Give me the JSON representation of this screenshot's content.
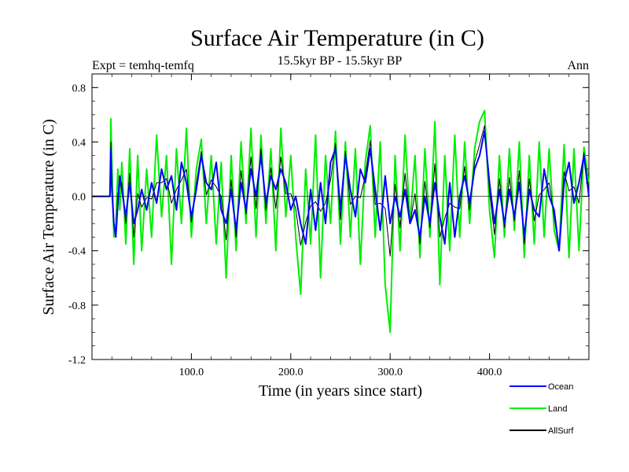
{
  "chart_data": {
    "type": "line",
    "title": "Surface Air Temperature (in C)",
    "subtitle": "15.5kyr BP - 15.5kyr BP",
    "left_label": "Expt = temhq-temfq",
    "right_label": "Ann",
    "xlabel": "Time (in years since start)",
    "ylabel": "Surface Air Temperature (in C)",
    "xlim": [
      0,
      500
    ],
    "ylim": [
      -1.2,
      0.9
    ],
    "xticks": [
      100,
      200,
      300,
      400
    ],
    "xtick_labels": [
      "100.0",
      "200.0",
      "300.0",
      "400.0"
    ],
    "yticks": [
      0.8,
      0.4,
      0.0,
      -0.4,
      -0.8,
      -1.2
    ],
    "ytick_labels": [
      "0.8",
      "0.4",
      "0.0",
      "-0.4",
      "-0.8",
      "-1.2"
    ],
    "legend_position": "bottom-right",
    "series": [
      {
        "name": "Ocean",
        "color": "#0000ff",
        "x": [
          0,
          18,
          19,
          20,
          22,
          24,
          26,
          28,
          30,
          34,
          38,
          42,
          46,
          50,
          55,
          60,
          65,
          70,
          75,
          80,
          85,
          90,
          95,
          100,
          105,
          110,
          115,
          120,
          125,
          130,
          135,
          140,
          145,
          150,
          155,
          160,
          165,
          170,
          175,
          180,
          185,
          190,
          195,
          200,
          205,
          210,
          215,
          220,
          225,
          230,
          235,
          240,
          245,
          250,
          255,
          260,
          265,
          270,
          275,
          280,
          285,
          290,
          295,
          300,
          305,
          310,
          315,
          320,
          325,
          330,
          335,
          340,
          345,
          350,
          355,
          360,
          365,
          370,
          375,
          380,
          385,
          390,
          395,
          400,
          405,
          410,
          415,
          420,
          425,
          430,
          435,
          440,
          445,
          450,
          455,
          460,
          465,
          470,
          475,
          480,
          485,
          490,
          495,
          500
        ],
        "y": [
          0.0,
          0.0,
          0.34,
          0.05,
          -0.2,
          -0.3,
          -0.05,
          0.15,
          0.05,
          -0.15,
          0.1,
          -0.2,
          -0.1,
          0.05,
          -0.1,
          0.1,
          -0.05,
          0.2,
          0.05,
          0.15,
          -0.1,
          0.25,
          0.1,
          -0.15,
          0.05,
          0.3,
          0.1,
          0.05,
          0.25,
          -0.1,
          -0.2,
          0.05,
          -0.25,
          0.1,
          -0.1,
          0.2,
          0.0,
          0.3,
          -0.05,
          0.15,
          0.05,
          0.2,
          0.1,
          -0.1,
          0.0,
          -0.2,
          -0.35,
          0.05,
          -0.25,
          0.1,
          -0.2,
          0.25,
          0.35,
          -0.1,
          0.3,
          0.05,
          -0.15,
          0.2,
          0.1,
          0.35,
          0.05,
          -0.25,
          0.15,
          -0.2,
          0.0,
          -0.15,
          0.05,
          -0.2,
          -0.1,
          -0.3,
          0.0,
          -0.2,
          0.1,
          -0.15,
          -0.35,
          0.1,
          -0.3,
          0.0,
          0.15,
          -0.05,
          0.2,
          0.3,
          0.48,
          0.1,
          -0.2,
          0.05,
          -0.2,
          0.05,
          -0.15,
          0.1,
          -0.3,
          0.05,
          -0.1,
          -0.15,
          0.2,
          0.0,
          -0.1,
          -0.4,
          0.1,
          0.25,
          -0.05,
          0.1,
          0.3,
          0.0
        ]
      },
      {
        "name": "Land",
        "color": "#00ee00",
        "x": [
          0,
          18,
          19,
          20,
          22,
          24,
          26,
          28,
          30,
          34,
          38,
          42,
          46,
          50,
          55,
          60,
          65,
          70,
          75,
          80,
          85,
          90,
          95,
          100,
          105,
          110,
          115,
          120,
          125,
          130,
          135,
          140,
          145,
          150,
          155,
          160,
          165,
          170,
          175,
          180,
          185,
          190,
          195,
          200,
          205,
          210,
          215,
          220,
          225,
          230,
          235,
          240,
          245,
          250,
          255,
          260,
          265,
          270,
          275,
          280,
          285,
          290,
          295,
          300,
          305,
          310,
          315,
          320,
          325,
          330,
          335,
          340,
          345,
          350,
          355,
          360,
          365,
          370,
          375,
          380,
          385,
          390,
          395,
          400,
          405,
          410,
          415,
          420,
          425,
          430,
          435,
          440,
          445,
          450,
          455,
          460,
          465,
          470,
          475,
          480,
          485,
          490,
          495,
          500
        ],
        "y": [
          0.0,
          0.0,
          0.57,
          0.25,
          -0.3,
          -0.2,
          0.2,
          -0.1,
          0.25,
          -0.35,
          0.35,
          -0.5,
          0.3,
          -0.4,
          0.2,
          -0.3,
          0.45,
          -0.15,
          0.3,
          -0.5,
          0.35,
          -0.2,
          0.5,
          -0.3,
          0.2,
          0.42,
          -0.2,
          0.3,
          -0.35,
          0.25,
          -0.6,
          0.3,
          -0.4,
          0.4,
          -0.2,
          0.5,
          -0.3,
          0.45,
          -0.2,
          0.35,
          -0.4,
          0.5,
          -0.15,
          0.3,
          -0.3,
          -0.72,
          0.2,
          -0.35,
          0.45,
          -0.6,
          0.3,
          -0.2,
          0.48,
          -0.35,
          0.4,
          -0.3,
          0.35,
          -0.5,
          0.25,
          0.52,
          -0.3,
          0.4,
          -0.65,
          -1.0,
          0.3,
          -0.4,
          0.45,
          -0.2,
          0.3,
          -0.45,
          0.35,
          -0.3,
          0.55,
          -0.65,
          0.3,
          -0.4,
          0.45,
          -0.3,
          0.4,
          -0.2,
          0.35,
          0.55,
          0.63,
          -0.1,
          -0.45,
          0.3,
          -0.3,
          0.35,
          -0.25,
          0.4,
          -0.45,
          0.3,
          -0.35,
          0.4,
          -0.3,
          0.35,
          -0.25,
          -0.4,
          0.38,
          -0.45,
          0.35,
          -0.4,
          0.36,
          0.1
        ]
      },
      {
        "name": "AllSurf",
        "color": "#000000",
        "x": [
          0,
          18,
          19,
          20,
          22,
          24,
          26,
          28,
          30,
          34,
          38,
          42,
          46,
          50,
          55,
          60,
          65,
          70,
          75,
          80,
          85,
          90,
          95,
          100,
          105,
          110,
          115,
          120,
          125,
          130,
          135,
          140,
          145,
          150,
          155,
          160,
          165,
          170,
          175,
          180,
          185,
          190,
          195,
          200,
          205,
          210,
          215,
          220,
          225,
          230,
          235,
          240,
          245,
          250,
          255,
          260,
          265,
          270,
          275,
          280,
          285,
          290,
          295,
          300,
          305,
          310,
          315,
          320,
          325,
          330,
          335,
          340,
          345,
          350,
          355,
          360,
          365,
          370,
          375,
          380,
          385,
          390,
          395,
          400,
          405,
          410,
          415,
          420,
          425,
          430,
          435,
          440,
          445,
          450,
          455,
          460,
          465,
          470,
          475,
          480,
          485,
          490,
          495,
          500
        ],
        "y": [
          0.0,
          0.0,
          0.4,
          0.1,
          -0.22,
          -0.27,
          0.02,
          0.08,
          0.1,
          -0.2,
          0.17,
          -0.3,
          0.02,
          -0.08,
          -0.01,
          -0.02,
          0.1,
          0.1,
          0.13,
          -0.05,
          0.05,
          0.12,
          0.2,
          -0.19,
          0.09,
          0.33,
          0.01,
          0.12,
          0.07,
          0.0,
          -0.32,
          0.12,
          -0.3,
          0.19,
          -0.13,
          0.29,
          -0.09,
          0.35,
          -0.1,
          0.21,
          -0.09,
          0.29,
          0.02,
          0.02,
          -0.09,
          -0.36,
          -0.19,
          -0.07,
          -0.04,
          -0.11,
          -0.05,
          0.12,
          0.39,
          -0.17,
          0.33,
          -0.06,
          0.0,
          -0.01,
          0.15,
          0.41,
          -0.06,
          -0.05,
          -0.09,
          -0.44,
          0.09,
          -0.23,
          0.17,
          -0.2,
          0.02,
          -0.35,
          0.11,
          -0.23,
          0.24,
          -0.3,
          -0.16,
          -0.05,
          -0.08,
          -0.09,
          0.22,
          -0.1,
          0.25,
          0.38,
          0.52,
          0.04,
          -0.28,
          0.13,
          -0.23,
          0.14,
          -0.18,
          0.19,
          -0.35,
          0.13,
          -0.18,
          0.01,
          0.05,
          0.1,
          -0.15,
          -0.4,
          0.18,
          0.04,
          0.07,
          -0.05,
          0.32,
          0.03
        ]
      }
    ]
  }
}
